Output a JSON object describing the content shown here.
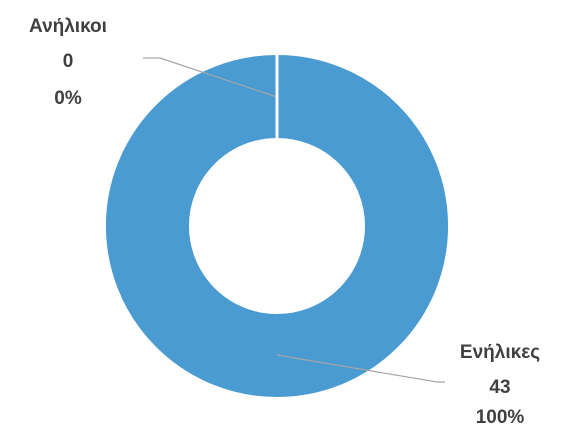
{
  "chart_data": {
    "type": "doughnut",
    "categories": [
      "Ανήλικοι",
      "Ενήλικες"
    ],
    "values": [
      0,
      43
    ],
    "percentage_labels": [
      "0%",
      "100%"
    ],
    "color": "#4a9bd1"
  }
}
